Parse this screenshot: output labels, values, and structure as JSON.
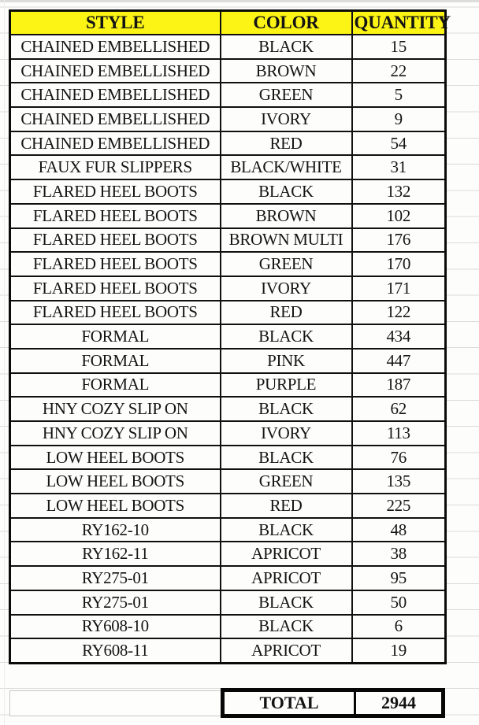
{
  "table": {
    "columns": [
      {
        "label": "STYLE"
      },
      {
        "label": "COLOR"
      },
      {
        "label": "QUANTITY"
      }
    ],
    "rows": [
      {
        "style": "CHAINED EMBELLISHED",
        "color": "BLACK",
        "quantity": 15
      },
      {
        "style": "CHAINED EMBELLISHED",
        "color": "BROWN",
        "quantity": 22
      },
      {
        "style": "CHAINED EMBELLISHED",
        "color": "GREEN",
        "quantity": 5
      },
      {
        "style": "CHAINED EMBELLISHED",
        "color": "IVORY",
        "quantity": 9
      },
      {
        "style": "CHAINED EMBELLISHED",
        "color": "RED",
        "quantity": 54
      },
      {
        "style": "FAUX FUR SLIPPERS",
        "color": "BLACK/WHITE",
        "quantity": 31
      },
      {
        "style": "FLARED HEEL BOOTS",
        "color": "BLACK",
        "quantity": 132
      },
      {
        "style": "FLARED HEEL BOOTS",
        "color": "BROWN",
        "quantity": 102
      },
      {
        "style": "FLARED HEEL BOOTS",
        "color": "BROWN MULTI",
        "quantity": 176
      },
      {
        "style": "FLARED HEEL BOOTS",
        "color": "GREEN",
        "quantity": 170
      },
      {
        "style": "FLARED HEEL BOOTS",
        "color": "IVORY",
        "quantity": 171
      },
      {
        "style": "FLARED HEEL BOOTS",
        "color": "RED",
        "quantity": 122
      },
      {
        "style": "FORMAL",
        "color": "BLACK",
        "quantity": 434
      },
      {
        "style": "FORMAL",
        "color": "PINK",
        "quantity": 447
      },
      {
        "style": "FORMAL",
        "color": "PURPLE",
        "quantity": 187
      },
      {
        "style": "HNY COZY SLIP ON",
        "color": "BLACK",
        "quantity": 62
      },
      {
        "style": "HNY COZY SLIP ON",
        "color": "IVORY",
        "quantity": 113
      },
      {
        "style": "LOW HEEL BOOTS",
        "color": "BLACK",
        "quantity": 76
      },
      {
        "style": "LOW HEEL BOOTS",
        "color": "GREEN",
        "quantity": 135
      },
      {
        "style": "LOW HEEL BOOTS",
        "color": "RED",
        "quantity": 225
      },
      {
        "style": "RY162-10",
        "color": "BLACK",
        "quantity": 48
      },
      {
        "style": "RY162-11",
        "color": "APRICOT",
        "quantity": 38
      },
      {
        "style": "RY275-01",
        "color": "APRICOT",
        "quantity": 95
      },
      {
        "style": "RY275-01",
        "color": "BLACK",
        "quantity": 50
      },
      {
        "style": "RY608-10",
        "color": "BLACK",
        "quantity": 6
      },
      {
        "style": "RY608-11",
        "color": "APRICOT",
        "quantity": 19
      }
    ],
    "total_label": "TOTAL",
    "total_value": "2944"
  },
  "colors": {
    "header_bg": "#fbf414",
    "table_border": "#101010",
    "background_gridline": "#dbdbd9"
  }
}
